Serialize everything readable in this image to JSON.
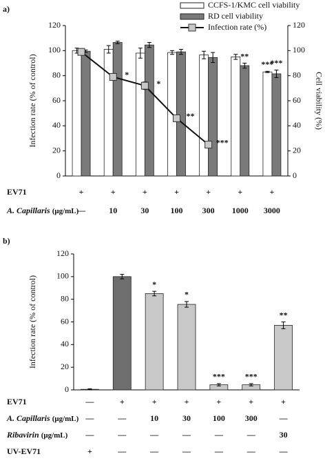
{
  "chart_data": [
    {
      "type": "bar",
      "label": "a)",
      "ylabel": "Infection rate (% of control)",
      "y2label": "Cell viability (%)",
      "ylim": [
        0,
        120
      ],
      "yticks": [
        0,
        20,
        40,
        60,
        80,
        100,
        120
      ],
      "y2lim": [
        0,
        120
      ],
      "y2ticks": [
        0,
        20,
        40,
        60,
        80,
        100,
        120
      ],
      "legend": "top-right",
      "series": [
        {
          "name": "CCFS-1/KMC cell viability",
          "color": "#ffffff",
          "axis": "y2",
          "values": [
            100,
            101,
            98,
            98.5,
            96.5,
            95,
            83
          ],
          "errors": [
            2,
            3,
            4,
            1.5,
            3,
            2,
            0.5
          ],
          "significance": [
            null,
            null,
            null,
            null,
            null,
            null,
            "***"
          ]
        },
        {
          "name": "RD cell viability",
          "color": "#7a7a7a",
          "axis": "y2",
          "values": [
            99.5,
            106.5,
            104.5,
            99,
            94.5,
            88,
            81.5
          ],
          "errors": [
            1,
            1,
            2,
            2,
            4,
            2,
            3
          ],
          "significance": [
            null,
            null,
            null,
            null,
            null,
            "**",
            "***"
          ]
        },
        {
          "name": "Infection rate (%)",
          "type": "line",
          "color": "#c8c8c8",
          "values": [
            99,
            79,
            72,
            46,
            25,
            null,
            null
          ],
          "errors": [
            1,
            2,
            3,
            2,
            1,
            null,
            null
          ],
          "significance": [
            null,
            "*",
            "*",
            "**",
            "***",
            null,
            null
          ]
        }
      ],
      "rows": [
        {
          "label": "EV71",
          "values": [
            "+",
            "+",
            "+",
            "+",
            "+",
            "+",
            "+"
          ]
        },
        {
          "label": "A. Capillaris",
          "unit": "(μg/mL)",
          "values": [
            "—",
            "10",
            "30",
            "100",
            "300",
            "1000",
            "3000"
          ]
        }
      ]
    },
    {
      "type": "bar",
      "label": "b)",
      "ylabel": "Infection rate (% of control)",
      "ylim": [
        0,
        120
      ],
      "yticks": [
        0,
        20,
        40,
        60,
        80,
        100,
        120
      ],
      "values": [
        0.5,
        100,
        85,
        75.5,
        4.5,
        4.5,
        57
      ],
      "errors": [
        0.5,
        2,
        2,
        2.5,
        1,
        1,
        3
      ],
      "colors": [
        "#6e6e6e",
        "#6e6e6e",
        "#c8c8c8",
        "#c8c8c8",
        "#c8c8c8",
        "#c8c8c8",
        "#c8c8c8"
      ],
      "significance": [
        null,
        null,
        "*",
        "*",
        "***",
        "***",
        "**"
      ],
      "rows": [
        {
          "label": "EV71",
          "values": [
            "—",
            "+",
            "+",
            "+",
            "+",
            "+",
            "+"
          ]
        },
        {
          "label": "A. Capillaris",
          "unit": "(μg/mL)",
          "values": [
            "—",
            "—",
            "10",
            "30",
            "100",
            "300",
            "—"
          ]
        },
        {
          "label": "Ribavirin",
          "unit": "(μg/mL)",
          "values": [
            "—",
            "—",
            "—",
            "—",
            "—",
            "—",
            "30"
          ]
        },
        {
          "label": "UV-EV71",
          "values": [
            "+",
            "—",
            "—",
            "—",
            "—",
            "—",
            "—"
          ]
        }
      ]
    }
  ]
}
